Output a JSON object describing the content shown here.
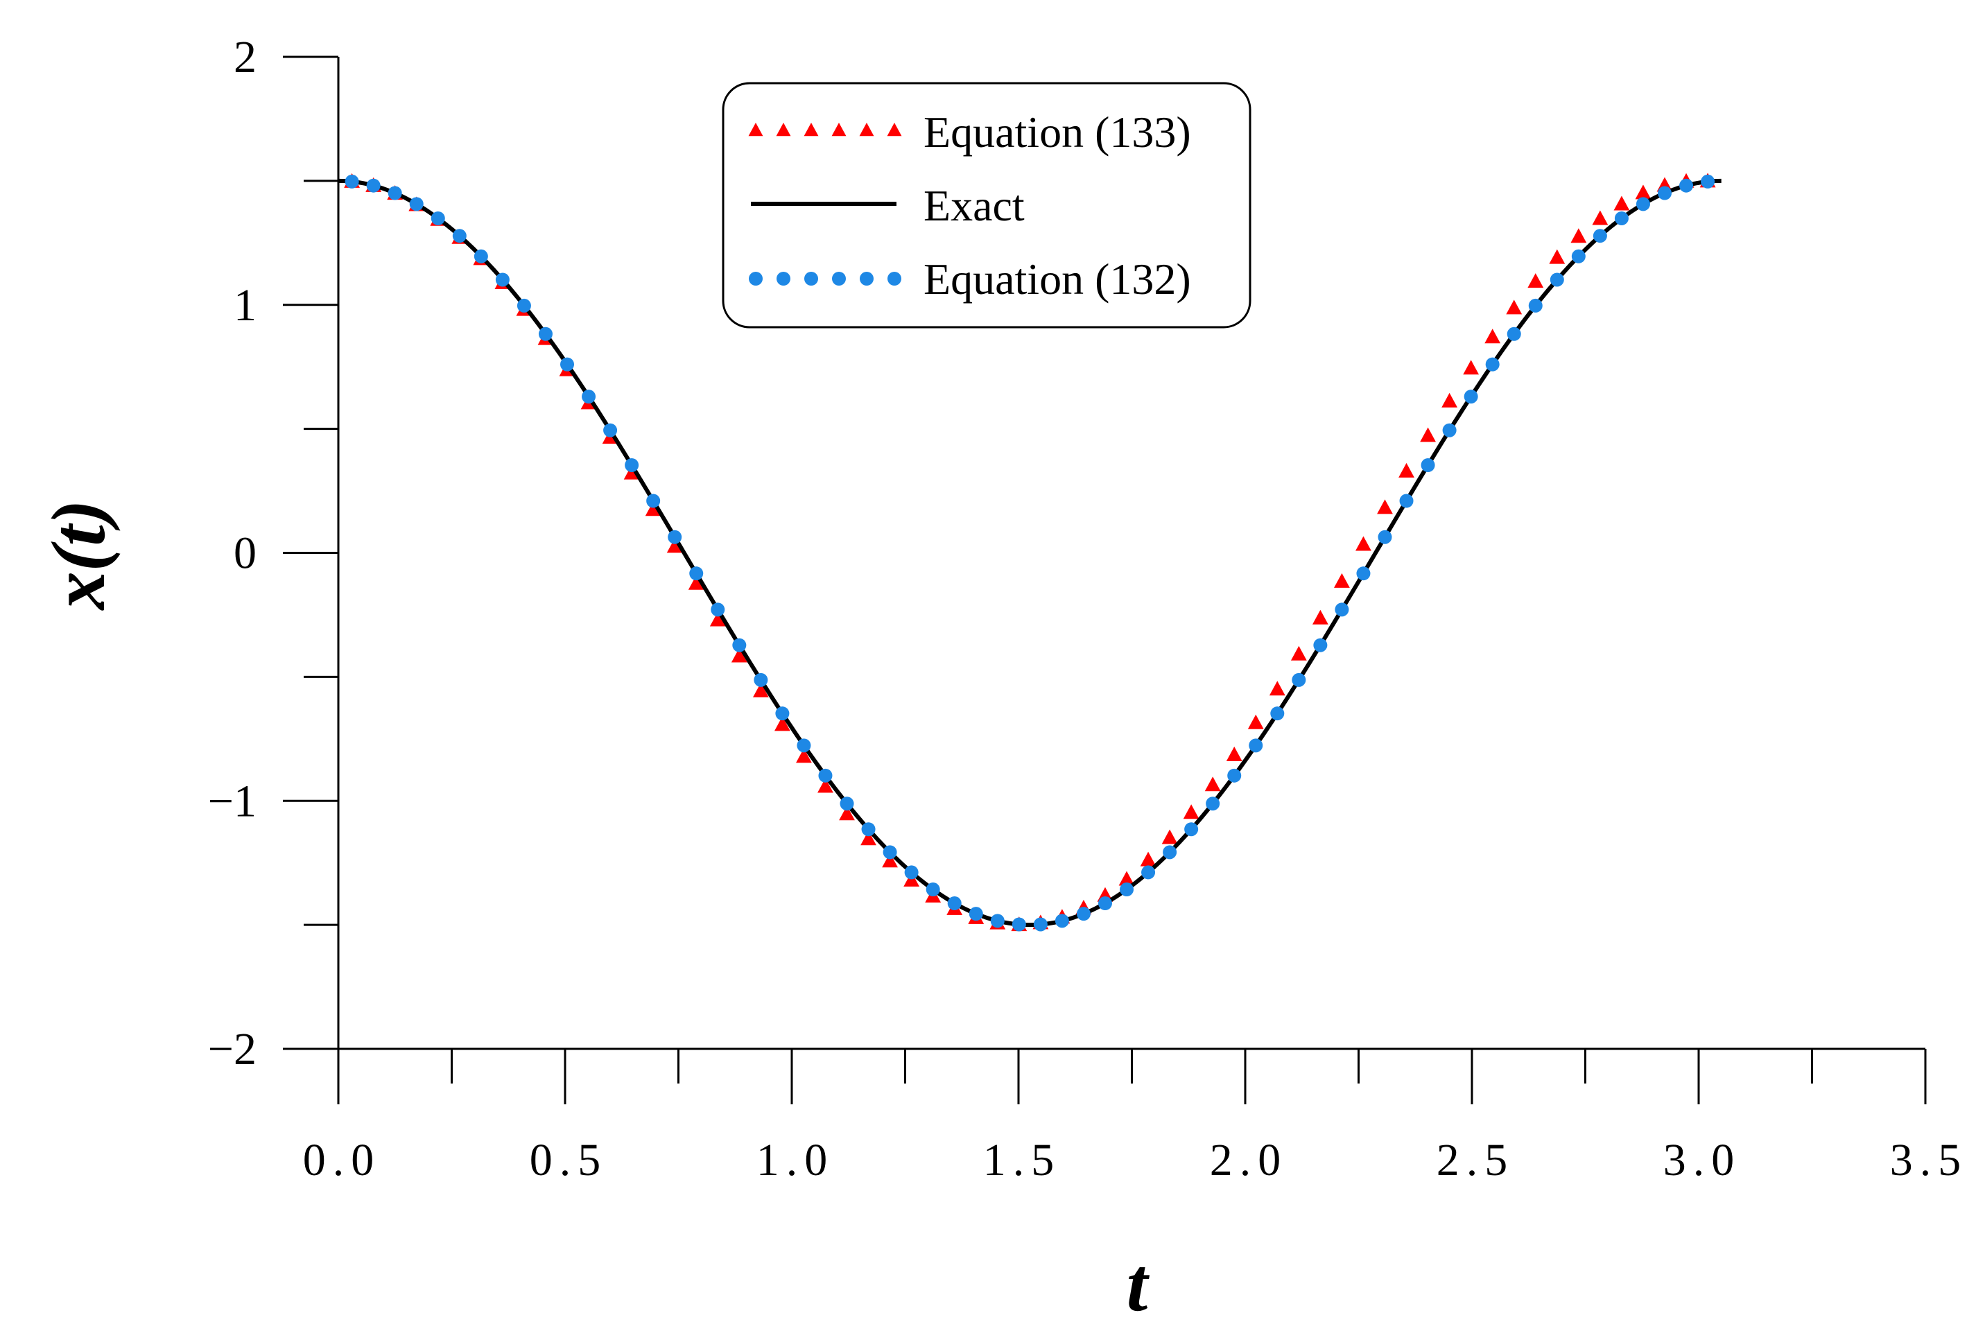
{
  "chart_data": {
    "type": "line",
    "xlabel": "t",
    "ylabel": "x(t)",
    "xlim": [
      0,
      3.5
    ],
    "ylim": [
      -2,
      2
    ],
    "x_ticks": [
      0.0,
      0.5,
      1.0,
      1.5,
      2.0,
      2.5,
      3.0,
      3.5
    ],
    "x_tick_labels": [
      "0.0",
      "0.5",
      "1.0",
      "1.5",
      "2.0",
      "2.5",
      "3.0",
      "3.5"
    ],
    "y_ticks": [
      -2,
      -1,
      0,
      1,
      2
    ],
    "y_tick_labels": [
      "−2",
      "−1",
      "0",
      "1",
      "2"
    ],
    "grid": false,
    "legend_position": "top-center",
    "series": [
      {
        "name": "Equation (133)",
        "style": "markers-triangle",
        "color": "#ff0000",
        "amplitude": 1.5,
        "period": 3.0,
        "t_range": [
          0.03,
          3.02
        ]
      },
      {
        "name": "Exact",
        "style": "solid-line",
        "color": "#000000",
        "amplitude": 1.5,
        "period": 3.05,
        "t_range": [
          0.0,
          3.05
        ]
      },
      {
        "name": "Equation (132)",
        "style": "markers-circle",
        "color": "#1e88e5",
        "amplitude": 1.5,
        "period": 3.05,
        "t_range": [
          0.03,
          3.02
        ]
      }
    ]
  }
}
